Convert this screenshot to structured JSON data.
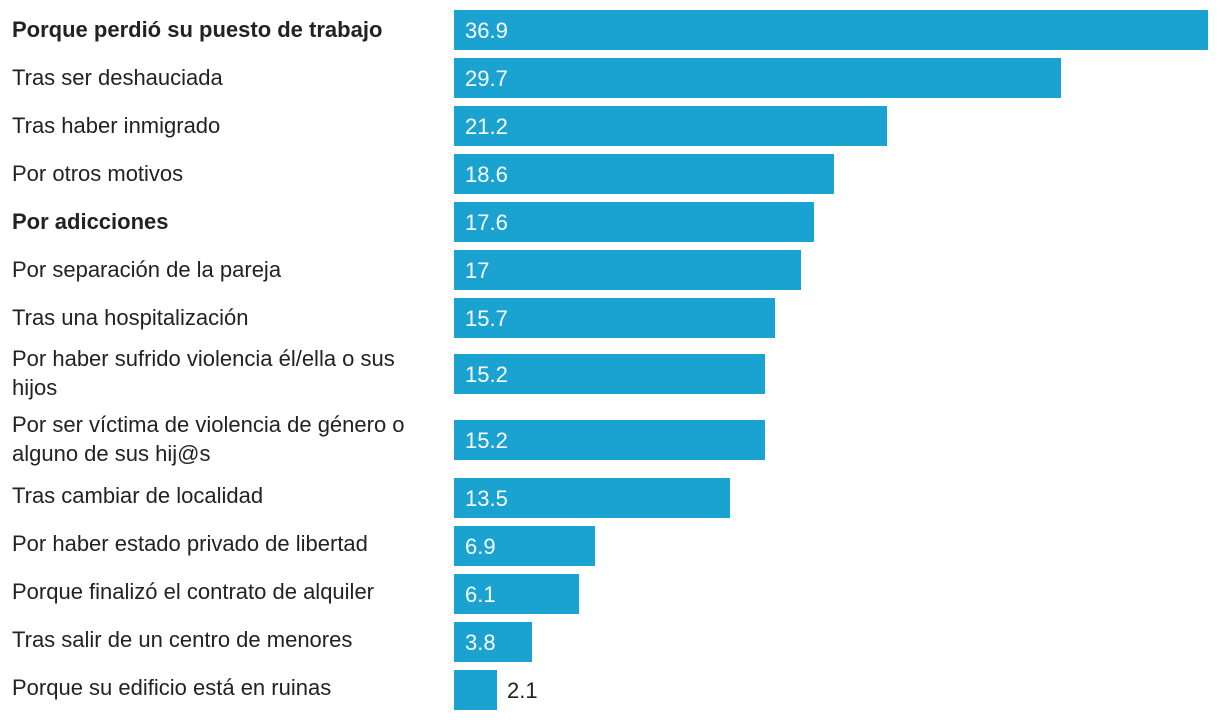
{
  "chart_data": {
    "type": "bar",
    "orientation": "horizontal",
    "title": "",
    "xlabel": "",
    "ylabel": "",
    "xlim": [
      0,
      36.9
    ],
    "grid": false,
    "bar_color": "#1aa3d0",
    "categories": [
      "Porque perdió su puesto de trabajo",
      "Tras ser deshauciada",
      "Tras haber inmigrado",
      "Por otros motivos",
      "Por adicciones",
      "Por separación de la pareja",
      "Tras una hospitalización",
      "Por haber sufrido violencia él/ella o sus hijos",
      "Por ser víctima de violencia de género o alguno de sus hij@s",
      "Tras cambiar de localidad",
      "Por haber estado privado de libertad",
      "Porque finalizó el contrato de alquiler",
      "Tras salir de un centro de menores",
      "Porque su edificio está en ruinas"
    ],
    "values": [
      36.9,
      29.7,
      21.2,
      18.6,
      17.6,
      17,
      15.7,
      15.2,
      15.2,
      13.5,
      6.9,
      6.1,
      3.8,
      2.1
    ],
    "value_labels": [
      "36.9",
      "29.7",
      "21.2",
      "18.6",
      "17.6",
      "17",
      "15.7",
      "15.2",
      "15.2",
      "13.5",
      "6.9",
      "6.1",
      "3.8",
      "2.1"
    ],
    "bold_categories": [
      "Porque perdió su puesto de trabajo",
      "Por adicciones"
    ]
  }
}
